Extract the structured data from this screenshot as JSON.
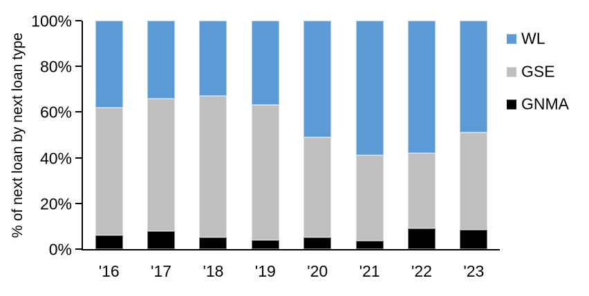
{
  "chart_data": {
    "type": "bar",
    "stacked": true,
    "percent_stacked": true,
    "title": "",
    "xlabel": "",
    "ylabel": "% of next loan by next loan type",
    "categories": [
      "'16",
      "'17",
      "'18",
      "'19",
      "'20",
      "'21",
      "'22",
      "'23"
    ],
    "series": [
      {
        "name": "GNMA",
        "color": "#000000",
        "values": [
          6,
          8,
          5,
          4,
          5,
          3.5,
          9,
          8.5
        ]
      },
      {
        "name": "GSE",
        "color": "#bfbfbf",
        "values": [
          56,
          58,
          62,
          59,
          44,
          37.5,
          33,
          42.5
        ]
      },
      {
        "name": "WL",
        "color": "#5b9bd5",
        "values": [
          38,
          34,
          33,
          37,
          51,
          59,
          58,
          49
        ]
      }
    ],
    "ylim": [
      0,
      100
    ],
    "yticks": [
      0,
      20,
      40,
      60,
      80,
      100
    ],
    "ytick_labels": [
      "0%",
      "20%",
      "40%",
      "60%",
      "80%",
      "100%"
    ],
    "grid": false,
    "legend_position": "right",
    "legend_order": [
      "WL",
      "GSE",
      "GNMA"
    ]
  },
  "colors": {
    "background": "#ffffff",
    "axis": "#000000",
    "wl_blue": "#5b9bd5",
    "gse_gray": "#bfbfbf",
    "gnma_black": "#000000"
  }
}
